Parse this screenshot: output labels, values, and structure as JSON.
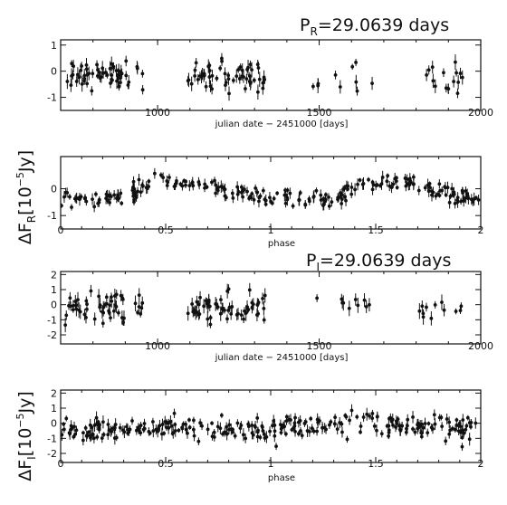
{
  "labels": {
    "period_r_sym": "P",
    "period_r_sub": "R",
    "period_r_val": "=29.0639 days",
    "period_i_sym": "P",
    "period_i_sub": "I",
    "period_i_val": "=29.0639 days",
    "ylabel_r_pre": "ΔF",
    "ylabel_r_sub": "R",
    "ylabel_r_unit": "[10",
    "ylabel_r_exp": "−5",
    "ylabel_r_end": "Jy]",
    "ylabel_i_pre": "ΔF",
    "ylabel_i_sub": "I",
    "ylabel_i_unit": "[10",
    "ylabel_i_exp": "−5",
    "ylabel_i_end": "Jy]"
  },
  "chart_data": [
    {
      "id": "r-time",
      "type": "scatter",
      "xlabel": "julian date − 2451000 [days]",
      "x_ticks": [
        "1000",
        "1500",
        "2000"
      ],
      "y_ticks": [
        "1",
        "0",
        "-1"
      ],
      "xlim": [
        700,
        2000
      ],
      "ylim": [
        -1.5,
        1.2
      ],
      "segments": [
        {
          "x": [
            710,
            960
          ],
          "mean": -0.1,
          "spread": 0.45,
          "n": 60
        },
        {
          "x": [
            1090,
            1335
          ],
          "mean": -0.2,
          "spread": 0.45,
          "n": 60
        },
        {
          "x": [
            1480,
            1710
          ],
          "mean": -0.3,
          "spread": 0.45,
          "n": 10
        },
        {
          "x": [
            1810,
            1960
          ],
          "mean": -0.3,
          "spread": 0.5,
          "n": 16
        }
      ]
    },
    {
      "id": "r-phase",
      "type": "scatter",
      "xlabel": "phase",
      "x_ticks": [
        "0",
        "0.5",
        "1",
        "1.5",
        "2"
      ],
      "y_ticks": [
        "0",
        "-1"
      ],
      "xlim": [
        0,
        2
      ],
      "ylim": [
        -1.5,
        1.2
      ],
      "curve": [
        [
          0,
          -0.45
        ],
        [
          0.3,
          -0.35
        ],
        [
          0.4,
          0.1
        ],
        [
          0.5,
          0.25
        ],
        [
          0.7,
          0.15
        ],
        [
          0.85,
          -0.2
        ],
        [
          1.0,
          -0.35
        ],
        [
          1.3,
          -0.4
        ],
        [
          1.4,
          0.05
        ],
        [
          1.5,
          0.25
        ],
        [
          1.7,
          0.15
        ],
        [
          1.85,
          -0.2
        ],
        [
          2.0,
          -0.4
        ]
      ],
      "n": 260,
      "spread": 0.25
    },
    {
      "id": "i-time",
      "type": "scatter",
      "xlabel": "julian date − 2451000 [days]",
      "x_ticks": [
        "1000",
        "1500",
        "2000"
      ],
      "y_ticks": [
        "2",
        "1",
        "0",
        "-1",
        "-2"
      ],
      "xlim": [
        700,
        2000
      ],
      "ylim": [
        -2.6,
        2.2
      ],
      "segments": [
        {
          "x": [
            710,
            960
          ],
          "mean": -0.2,
          "spread": 0.9,
          "n": 55
        },
        {
          "x": [
            1090,
            1335
          ],
          "mean": -0.3,
          "spread": 0.8,
          "n": 60
        },
        {
          "x": [
            1480,
            1710
          ],
          "mean": 0.0,
          "spread": 0.7,
          "n": 10
        },
        {
          "x": [
            1810,
            1960
          ],
          "mean": -0.3,
          "spread": 0.6,
          "n": 12
        }
      ]
    },
    {
      "id": "i-phase",
      "type": "scatter",
      "xlabel": "phase",
      "x_ticks": [
        "0",
        "0.5",
        "1",
        "1.5",
        "2"
      ],
      "y_ticks": [
        "2",
        "1",
        "0",
        "-1",
        "-2"
      ],
      "xlim": [
        0,
        2
      ],
      "ylim": [
        -2.6,
        2.2
      ],
      "curve": [
        [
          0,
          -0.6
        ],
        [
          0.5,
          -0.2
        ],
        [
          1.0,
          -0.4
        ],
        [
          1.5,
          0.1
        ],
        [
          2.0,
          -0.5
        ]
      ],
      "n": 300,
      "spread": 0.7
    }
  ]
}
